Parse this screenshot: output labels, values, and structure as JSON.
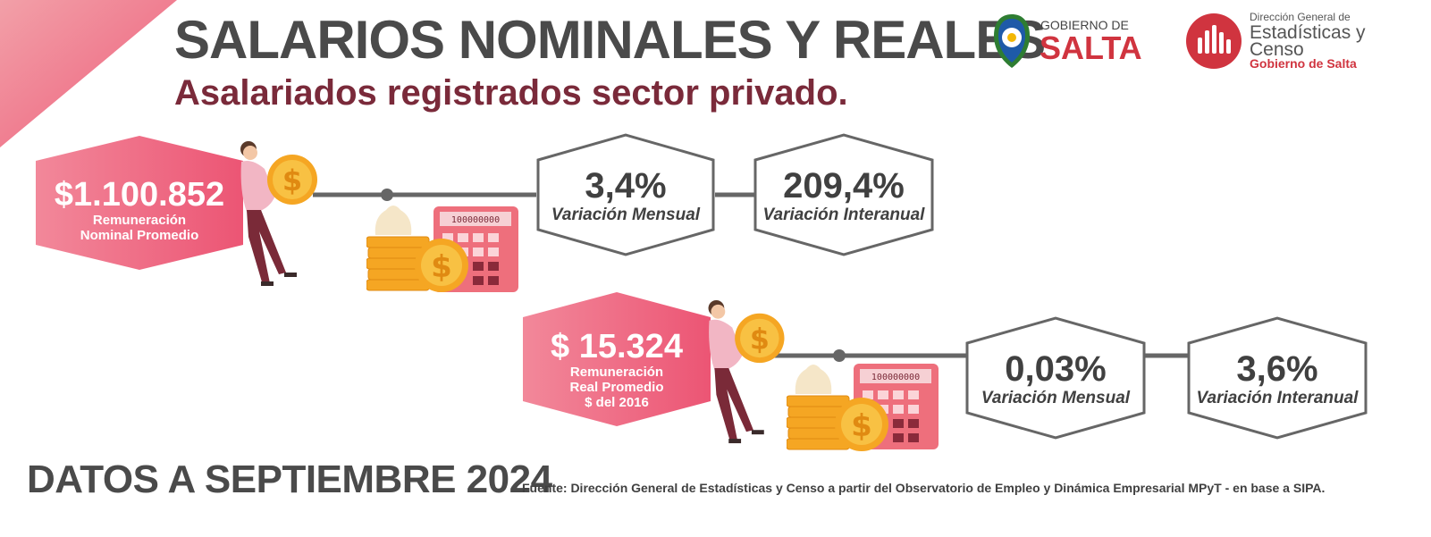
{
  "header": {
    "title": "SALARIOS NOMINALES Y REALES",
    "subtitle": "Asalariados registrados sector privado."
  },
  "logos": {
    "gobierno": {
      "line1": "GOBIERNO DE",
      "line2": "SALTA",
      "icon": "salta-shield-icon"
    },
    "direccion": {
      "line1": "Dirección General de",
      "line2": "Estadísticas y",
      "line3": "Censo",
      "line4": "Gobierno de Salta",
      "icon": "bar-chart-badge-icon"
    }
  },
  "nominal": {
    "value": "$1.100.852",
    "label_line1": "Remuneración",
    "label_line2": "Nominal Promedio",
    "monthly_value": "3,4%",
    "monthly_label": "Variación Mensual",
    "annual_value": "209,4%",
    "annual_label": "Variación Interanual",
    "calculator_display": "100000000"
  },
  "real": {
    "value": "$ 15.324",
    "label_line1": "Remuneración",
    "label_line2": "Real Promedio",
    "label_line3": "$ del 2016",
    "monthly_value": "0,03%",
    "monthly_label": "Variación Mensual",
    "annual_value": "3,6%",
    "annual_label": "Variación Interanual",
    "calculator_display": "100000000"
  },
  "footer": {
    "date": "DATOS A SEPTIEMBRE 2024",
    "source": "Fuente: Dirección General de Estadísticas y Censo a partir del Observatorio de Empleo y Dinámica Empresarial MPyT - en base a SIPA."
  },
  "colors": {
    "accent_pink": "#ee5d7a",
    "title_gray": "#4a4a4a",
    "subtitle_maroon": "#7a2a3a",
    "line_gray": "#666666"
  }
}
